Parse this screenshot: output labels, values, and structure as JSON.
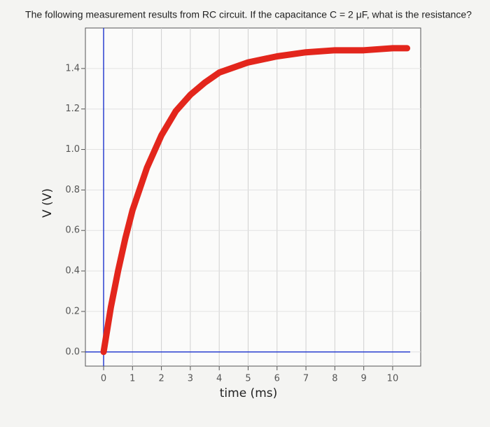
{
  "chart_data": {
    "type": "line",
    "title": "The following measurement results from RC circuit. If the capacitance C = 2 μF, what is the resistance?",
    "x_label": "time (ms)",
    "y_label": "V (V)",
    "x": [
      0,
      0.25,
      0.5,
      0.75,
      1,
      1.5,
      2,
      2.5,
      3,
      3.5,
      4,
      5,
      6,
      7,
      8,
      9,
      10,
      10.5
    ],
    "series": [
      {
        "color": "#e3261c",
        "values": [
          0,
          0.22,
          0.4,
          0.56,
          0.7,
          0.91,
          1.07,
          1.19,
          1.27,
          1.33,
          1.38,
          1.43,
          1.46,
          1.48,
          1.49,
          1.49,
          1.5,
          1.5
        ]
      }
    ],
    "xlim": [
      -0.63,
      10.97
    ],
    "ylim": [
      -0.07,
      1.6
    ],
    "xticks": [
      0,
      1,
      2,
      3,
      4,
      5,
      6,
      7,
      8,
      9,
      10
    ],
    "yticks": [
      {
        "value": 0,
        "label": "0.0"
      },
      0.2,
      0.4,
      0.6,
      0.8,
      {
        "value": 1,
        "label": "1.0"
      },
      1.2,
      1.4
    ],
    "grid": true
  }
}
